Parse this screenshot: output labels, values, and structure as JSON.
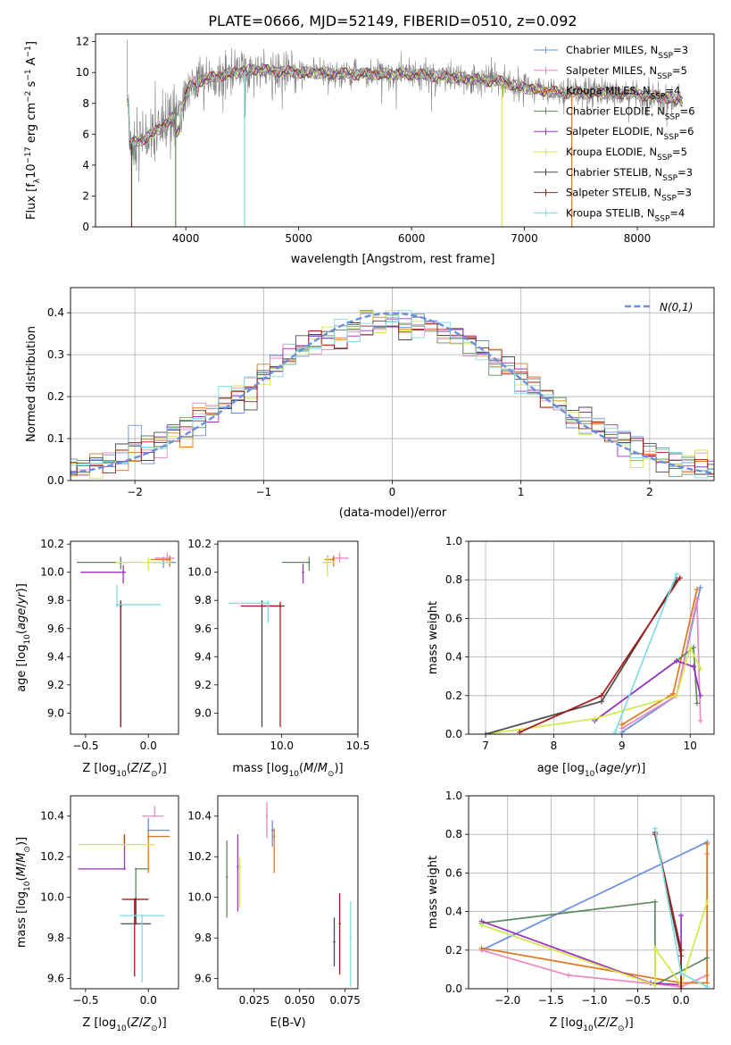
{
  "figure_title": "PLATE=0666, MJD=52149, FIBERID=0510, z=0.092",
  "colors": {
    "Chabrier MILES": "#6a8fe0",
    "Salpeter MILES": "#e889c0",
    "Kroupa MILES": "#e0761f",
    "Chabrier ELODIE": "#5e8a5e",
    "Salpeter ELODIE": "#9a33c0",
    "Kroupa ELODIE": "#d4e84a",
    "Chabrier STELIB": "#4a4a4a",
    "Salpeter STELIB": "#a81818",
    "Kroupa STELIB": "#7fdce0",
    "data": "#808080",
    "normal": "#6a8fe0",
    "grid": "#b0b0b0"
  },
  "chart_data": [
    {
      "id": "spectrum",
      "type": "line",
      "title": "PLATE=0666, MJD=52149, FIBERID=0510, z=0.092",
      "xlabel": "wavelength [Angstrom, rest frame]",
      "ylabel": "Flux [f_λ 10^-17 erg cm^-2 s^-1 A^-1]",
      "xlim": [
        3200,
        8680
      ],
      "ylim": [
        0,
        12.5
      ],
      "xticks": [
        4000,
        5000,
        6000,
        7000,
        8000
      ],
      "yticks": [
        0,
        2,
        4,
        6,
        8,
        10,
        12
      ],
      "grid": false,
      "legend_position": "top-right",
      "legend": [
        {
          "name": "Chabrier MILES",
          "nssp": "3"
        },
        {
          "name": "Salpeter MILES",
          "nssp": "5"
        },
        {
          "name": "Kroupa MILES",
          "nssp": "4"
        },
        {
          "name": "Chabrier ELODIE",
          "nssp": "6"
        },
        {
          "name": "Salpeter ELODIE",
          "nssp": "6"
        },
        {
          "name": "Kroupa ELODIE",
          "nssp": "5"
        },
        {
          "name": "Chabrier STELIB",
          "nssp": "3"
        },
        {
          "name": "Salpeter STELIB",
          "nssp": "3"
        },
        {
          "name": "Kroupa STELIB",
          "nssp": "4"
        }
      ],
      "continuum": [
        [
          3500,
          5.3
        ],
        [
          3650,
          5.8
        ],
        [
          3800,
          6.5
        ],
        [
          3950,
          7.6
        ],
        [
          4050,
          9.3
        ],
        [
          4300,
          9.8
        ],
        [
          4600,
          10.2
        ],
        [
          5000,
          10.0
        ],
        [
          5500,
          9.9
        ],
        [
          6000,
          9.9
        ],
        [
          6500,
          9.6
        ],
        [
          6800,
          9.4
        ],
        [
          7000,
          9.0
        ],
        [
          7300,
          8.7
        ],
        [
          7700,
          8.7
        ],
        [
          8000,
          8.6
        ],
        [
          8400,
          8.2
        ]
      ]
    },
    {
      "id": "residuals",
      "type": "bar",
      "xlabel": "(data-model)/error",
      "ylabel": "Normed distribution",
      "xlim": [
        -2.5,
        2.5
      ],
      "ylim": [
        0,
        0.46
      ],
      "xticks": [
        -2,
        -1,
        0,
        1,
        2
      ],
      "yticks": [
        0.0,
        0.1,
        0.2,
        0.3,
        0.4
      ],
      "grid": true,
      "legend_position": "top-right",
      "normal_label": "N(0,1)",
      "bin_width": 0.1
    },
    {
      "id": "age-vs-Z",
      "type": "scatter",
      "xlabel": "Z [log10(Z/Z⊙)]",
      "ylabel": "age [log10(age/yr)]",
      "xlim": [
        -0.62,
        0.24
      ],
      "ylim": [
        8.85,
        10.22
      ],
      "xticks": [
        -0.5,
        0.0
      ],
      "yticks": [
        9.0,
        9.2,
        9.4,
        9.6,
        9.8,
        10.0,
        10.2
      ],
      "grid": false,
      "points": [
        {
          "s": "Chabrier MILES",
          "x": 0.12,
          "y": 10.07,
          "xerr": [
            0.12,
            0.1
          ],
          "yerr": [
            0.04,
            0.04
          ]
        },
        {
          "s": "Salpeter MILES",
          "x": 0.15,
          "y": 10.1,
          "xerr": [
            0.1,
            0.06
          ],
          "yerr": [
            0.03,
            0.04
          ]
        },
        {
          "s": "Kroupa MILES",
          "x": 0.17,
          "y": 10.09,
          "xerr": [
            0.15,
            0.0
          ],
          "yerr": [
            0.05,
            0.03
          ]
        },
        {
          "s": "Chabrier ELODIE",
          "x": -0.22,
          "y": 10.07,
          "xerr": [
            0.35,
            0.05
          ],
          "yerr": [
            0.05,
            0.04
          ]
        },
        {
          "s": "Salpeter ELODIE",
          "x": -0.2,
          "y": 10.0,
          "xerr": [
            0.34,
            0.02
          ],
          "yerr": [
            0.08,
            0.05
          ]
        },
        {
          "s": "Kroupa ELODIE",
          "x": 0.0,
          "y": 10.07,
          "xerr": [
            0.26,
            0.18
          ],
          "yerr": [
            0.06,
            0.04
          ]
        },
        {
          "s": "Chabrier STELIB",
          "x": -0.22,
          "y": 9.76,
          "xerr": [
            0.0,
            0.0
          ],
          "yerr": [
            0.86,
            0.04
          ]
        },
        {
          "s": "Salpeter STELIB",
          "x": -0.22,
          "y": 9.76,
          "xerr": [
            0.0,
            0.0
          ],
          "yerr": [
            0.86,
            0.03
          ]
        },
        {
          "s": "Kroupa STELIB",
          "x": -0.25,
          "y": 9.77,
          "xerr": [
            0.0,
            0.35
          ],
          "yerr": [
            0.02,
            0.14
          ]
        }
      ]
    },
    {
      "id": "age-vs-mass",
      "type": "scatter",
      "xlabel": "mass [log10(M/M⊙)]",
      "ylabel": "",
      "xlim": [
        9.58,
        10.5
      ],
      "ylim": [
        8.85,
        10.22
      ],
      "xticks": [
        10.0,
        10.5
      ],
      "yticks": [
        9.0,
        9.2,
        9.4,
        9.6,
        9.8,
        10.0,
        10.2
      ],
      "grid": false,
      "points": [
        {
          "s": "Chabrier MILES",
          "x": 10.3,
          "y": 10.07,
          "xerr": [
            0.03,
            0.0
          ],
          "yerr": [
            0.05,
            0.05
          ]
        },
        {
          "s": "Salpeter MILES",
          "x": 10.38,
          "y": 10.1,
          "xerr": [
            0.05,
            0.06
          ],
          "yerr": [
            0.03,
            0.04
          ]
        },
        {
          "s": "Kroupa MILES",
          "x": 10.34,
          "y": 10.09,
          "xerr": [
            0.06,
            0.0
          ],
          "yerr": [
            0.05,
            0.03
          ]
        },
        {
          "s": "Chabrier ELODIE",
          "x": 10.18,
          "y": 10.07,
          "xerr": [
            0.18,
            0.0
          ],
          "yerr": [
            0.06,
            0.04
          ]
        },
        {
          "s": "Salpeter ELODIE",
          "x": 10.14,
          "y": 10.0,
          "xerr": [
            0.0,
            0.0
          ],
          "yerr": [
            0.08,
            0.06
          ]
        },
        {
          "s": "Kroupa ELODIE",
          "x": 10.3,
          "y": 10.07,
          "xerr": [
            0.03,
            0.05
          ],
          "yerr": [
            0.1,
            0.04
          ]
        },
        {
          "s": "Chabrier STELIB",
          "x": 9.87,
          "y": 9.76,
          "xerr": [
            0.0,
            0.15
          ],
          "yerr": [
            0.86,
            0.04
          ]
        },
        {
          "s": "Salpeter STELIB",
          "x": 9.99,
          "y": 9.76,
          "xerr": [
            0.26,
            0.0
          ],
          "yerr": [
            0.86,
            0.03
          ]
        },
        {
          "s": "Kroupa STELIB",
          "x": 9.91,
          "y": 9.78,
          "xerr": [
            0.26,
            0.0
          ],
          "yerr": [
            0.14,
            0.02
          ]
        }
      ]
    },
    {
      "id": "weight-vs-age",
      "type": "line",
      "xlabel": "age [log10(age/yr)]",
      "ylabel": "mass weight",
      "xlim": [
        6.75,
        10.35
      ],
      "ylim": [
        0,
        1.0
      ],
      "xticks": [
        7,
        8,
        9,
        10
      ],
      "yticks": [
        0.0,
        0.2,
        0.4,
        0.6,
        0.8,
        1.0
      ],
      "grid": true,
      "series": [
        {
          "s": "Chabrier MILES",
          "pts": [
            [
              9.0,
              0.01
            ],
            [
              9.8,
              0.2
            ],
            [
              10.15,
              0.76
            ]
          ]
        },
        {
          "s": "Salpeter MILES",
          "pts": [
            [
              9.0,
              0.03
            ],
            [
              9.8,
              0.2
            ],
            [
              10.1,
              0.7
            ],
            [
              10.15,
              0.07
            ]
          ]
        },
        {
          "s": "Kroupa MILES",
          "pts": [
            [
              9.0,
              0.05
            ],
            [
              9.75,
              0.21
            ],
            [
              10.1,
              0.75
            ]
          ]
        },
        {
          "s": "Chabrier ELODIE",
          "pts": [
            [
              8.6,
              0.07
            ],
            [
              9.8,
              0.38
            ],
            [
              10.05,
              0.45
            ],
            [
              10.1,
              0.16
            ]
          ]
        },
        {
          "s": "Salpeter ELODIE",
          "pts": [
            [
              8.6,
              0.07
            ],
            [
              9.8,
              0.38
            ],
            [
              10.05,
              0.35
            ],
            [
              10.15,
              0.2
            ]
          ]
        },
        {
          "s": "Kroupa ELODIE",
          "pts": [
            [
              7.0,
              0.0
            ],
            [
              8.6,
              0.08
            ],
            [
              9.8,
              0.2
            ],
            [
              10.0,
              0.45
            ],
            [
              10.15,
              0.34
            ]
          ]
        },
        {
          "s": "Chabrier STELIB",
          "pts": [
            [
              7.0,
              0.0
            ],
            [
              8.7,
              0.17
            ],
            [
              9.8,
              0.8
            ]
          ]
        },
        {
          "s": "Salpeter STELIB",
          "pts": [
            [
              7.5,
              0.01
            ],
            [
              8.7,
              0.2
            ],
            [
              9.85,
              0.81
            ]
          ]
        },
        {
          "s": "Kroupa STELIB",
          "pts": [
            [
              8.9,
              0.01
            ],
            [
              9.8,
              0.83
            ]
          ]
        }
      ]
    },
    {
      "id": "mass-vs-Z",
      "type": "scatter",
      "xlabel": "Z [log10(Z/Z⊙)]",
      "ylabel": "mass [log10(M/M⊙)]",
      "xlim": [
        -0.62,
        0.24
      ],
      "ylim": [
        9.55,
        10.5
      ],
      "xticks": [
        -0.5,
        0.0
      ],
      "yticks": [
        9.6,
        9.8,
        10.0,
        10.2,
        10.4
      ],
      "grid": false,
      "points": [
        {
          "s": "Chabrier MILES",
          "x": 0.0,
          "y": 10.33,
          "xerr": [
            0.0,
            0.17
          ],
          "yerr": [
            0.0,
            0.06
          ]
        },
        {
          "s": "Salpeter MILES",
          "x": 0.05,
          "y": 10.4,
          "xerr": [
            0.1,
            0.07
          ],
          "yerr": [
            0.0,
            0.05
          ]
        },
        {
          "s": "Kroupa MILES",
          "x": 0.0,
          "y": 10.3,
          "xerr": [
            0.0,
            0.17
          ],
          "yerr": [
            0.18,
            0.03
          ]
        },
        {
          "s": "Chabrier ELODIE",
          "x": -0.1,
          "y": 10.14,
          "xerr": [
            0.0,
            0.1
          ],
          "yerr": [
            0.25,
            0.0
          ]
        },
        {
          "s": "Salpeter ELODIE",
          "x": -0.19,
          "y": 10.14,
          "xerr": [
            0.37,
            0.0
          ],
          "yerr": [
            0.0,
            0.17
          ]
        },
        {
          "s": "Kroupa ELODIE",
          "x": -0.2,
          "y": 10.26,
          "xerr": [
            0.36,
            0.25
          ],
          "yerr": [
            0.0,
            0.04
          ]
        },
        {
          "s": "Chabrier STELIB",
          "x": -0.1,
          "y": 9.87,
          "xerr": [
            0.12,
            0.12
          ],
          "yerr": [
            0.0,
            0.13
          ]
        },
        {
          "s": "Salpeter STELIB",
          "x": -0.11,
          "y": 9.99,
          "xerr": [
            0.1,
            0.11
          ],
          "yerr": [
            0.38,
            0.0
          ]
        },
        {
          "s": "Kroupa STELIB",
          "x": -0.05,
          "y": 9.91,
          "xerr": [
            0.18,
            0.18
          ],
          "yerr": [
            0.33,
            0.0
          ]
        }
      ]
    },
    {
      "id": "mass-vs-ebv",
      "type": "scatter",
      "xlabel": "E(B-V)",
      "ylabel": "",
      "xlim": [
        0.005,
        0.082
      ],
      "ylim": [
        9.55,
        10.5
      ],
      "xticks": [
        0.025,
        0.05,
        0.075
      ],
      "xticklabels": [
        "0.025",
        "0.050",
        "0.075"
      ],
      "yticks": [
        9.6,
        9.8,
        10.0,
        10.2,
        10.4
      ],
      "grid": false,
      "points": [
        {
          "s": "Chabrier MILES",
          "x": 0.035,
          "y": 10.33,
          "yerr": [
            0.08,
            0.05
          ]
        },
        {
          "s": "Salpeter MILES",
          "x": 0.032,
          "y": 10.4,
          "yerr": [
            0.11,
            0.07
          ]
        },
        {
          "s": "Kroupa MILES",
          "x": 0.036,
          "y": 10.3,
          "yerr": [
            0.18,
            0.04
          ]
        },
        {
          "s": "Chabrier ELODIE",
          "x": 0.01,
          "y": 10.1,
          "yerr": [
            0.2,
            0.18
          ]
        },
        {
          "s": "Salpeter ELODIE",
          "x": 0.016,
          "y": 10.15,
          "yerr": [
            0.22,
            0.16
          ]
        },
        {
          "s": "Kroupa ELODIE",
          "x": 0.017,
          "y": 10.15,
          "yerr": [
            0.2,
            0.05
          ]
        },
        {
          "s": "Chabrier STELIB",
          "x": 0.069,
          "y": 9.78,
          "yerr": [
            0.12,
            0.12
          ]
        },
        {
          "s": "Salpeter STELIB",
          "x": 0.072,
          "y": 9.87,
          "yerr": [
            0.25,
            0.15
          ]
        },
        {
          "s": "Kroupa STELIB",
          "x": 0.078,
          "y": 9.8,
          "yerr": [
            0.24,
            0.18
          ]
        }
      ]
    },
    {
      "id": "weight-vs-Z",
      "type": "line",
      "xlabel": "Z [log10(Z/Z⊙)]",
      "ylabel": "mass weight",
      "xlim": [
        -2.45,
        0.38
      ],
      "ylim": [
        0,
        1.0
      ],
      "xticks": [
        -2.0,
        -1.5,
        -1.0,
        -0.5,
        0.0
      ],
      "yticks": [
        0.0,
        0.2,
        0.4,
        0.6,
        0.8,
        1.0
      ],
      "grid": true,
      "series": [
        {
          "s": "Chabrier MILES",
          "pts": [
            [
              -2.3,
              0.2
            ],
            [
              0.3,
              0.76
            ]
          ]
        },
        {
          "s": "Salpeter MILES",
          "pts": [
            [
              -2.3,
              0.2
            ],
            [
              -1.3,
              0.07
            ],
            [
              0.0,
              0.01
            ],
            [
              0.3,
              0.07
            ],
            [
              0.3,
              0.7
            ]
          ]
        },
        {
          "s": "Kroupa MILES",
          "pts": [
            [
              -2.3,
              0.21
            ],
            [
              0.0,
              0.03
            ],
            [
              0.3,
              0.03
            ],
            [
              0.3,
              0.75
            ]
          ]
        },
        {
          "s": "Chabrier ELODIE",
          "pts": [
            [
              -2.3,
              0.34
            ],
            [
              -0.3,
              0.45
            ],
            [
              -0.3,
              0.02
            ],
            [
              0.3,
              0.16
            ]
          ]
        },
        {
          "s": "Salpeter ELODIE",
          "pts": [
            [
              -2.3,
              0.35
            ],
            [
              -0.35,
              0.03
            ],
            [
              0.0,
              0.02
            ],
            [
              0.0,
              0.38
            ]
          ]
        },
        {
          "s": "Kroupa ELODIE",
          "pts": [
            [
              -2.3,
              0.33
            ],
            [
              -0.3,
              0.02
            ],
            [
              -0.3,
              0.21
            ],
            [
              0.0,
              0.02
            ],
            [
              0.3,
              0.45
            ]
          ]
        },
        {
          "s": "Chabrier STELIB",
          "pts": [
            [
              -0.3,
              0.8
            ],
            [
              0.0,
              0.17
            ],
            [
              0.0,
              0.0
            ]
          ]
        },
        {
          "s": "Salpeter STELIB",
          "pts": [
            [
              -0.3,
              0.81
            ],
            [
              0.0,
              0.2
            ],
            [
              0.0,
              0.0
            ]
          ]
        },
        {
          "s": "Kroupa STELIB",
          "pts": [
            [
              -0.3,
              0.83
            ],
            [
              0.0,
              0.08
            ],
            [
              0.3,
              0.01
            ]
          ]
        }
      ]
    }
  ]
}
